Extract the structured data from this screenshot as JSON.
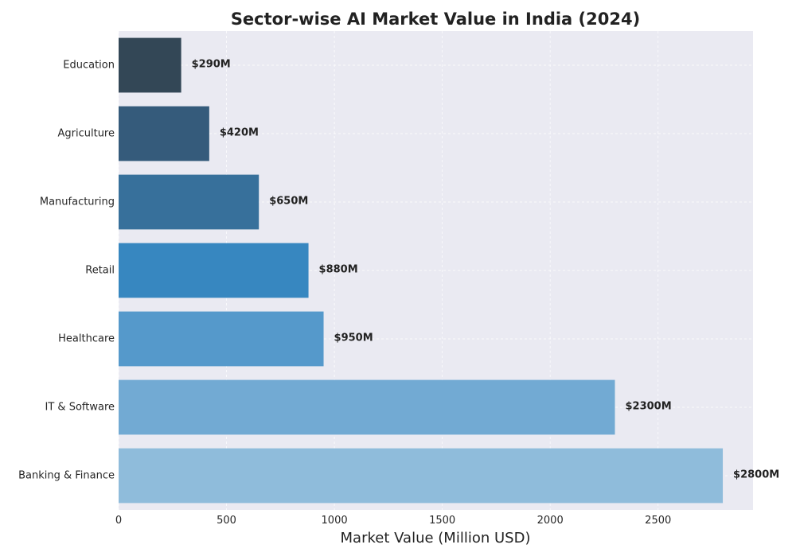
{
  "chart_data": {
    "type": "bar",
    "orientation": "horizontal",
    "title": "Sector-wise AI Market Value in India (2024)",
    "xlabel": "Market Value (Million USD)",
    "ylabel": "",
    "categories": [
      "Banking & Finance",
      "IT & Software",
      "Healthcare",
      "Retail",
      "Manufacturing",
      "Agriculture",
      "Education"
    ],
    "values": [
      2800,
      2300,
      950,
      880,
      650,
      420,
      290
    ],
    "data_labels": [
      "$2800M",
      "$2300M",
      "$950M",
      "$880M",
      "$650M",
      "$420M",
      "$290M"
    ],
    "bar_colors": [
      "#8fbcdb",
      "#72aad3",
      "#5599cb",
      "#3787c0",
      "#37709b",
      "#355b7b",
      "#334756"
    ],
    "xlim": [
      0,
      2940
    ],
    "xticks": [
      0,
      500,
      1000,
      1500,
      2000,
      2500
    ],
    "xtick_labels": [
      "0",
      "500",
      "1000",
      "1500",
      "2000",
      "2500"
    ],
    "grid": true,
    "plot_background": "#eaeaf2"
  }
}
